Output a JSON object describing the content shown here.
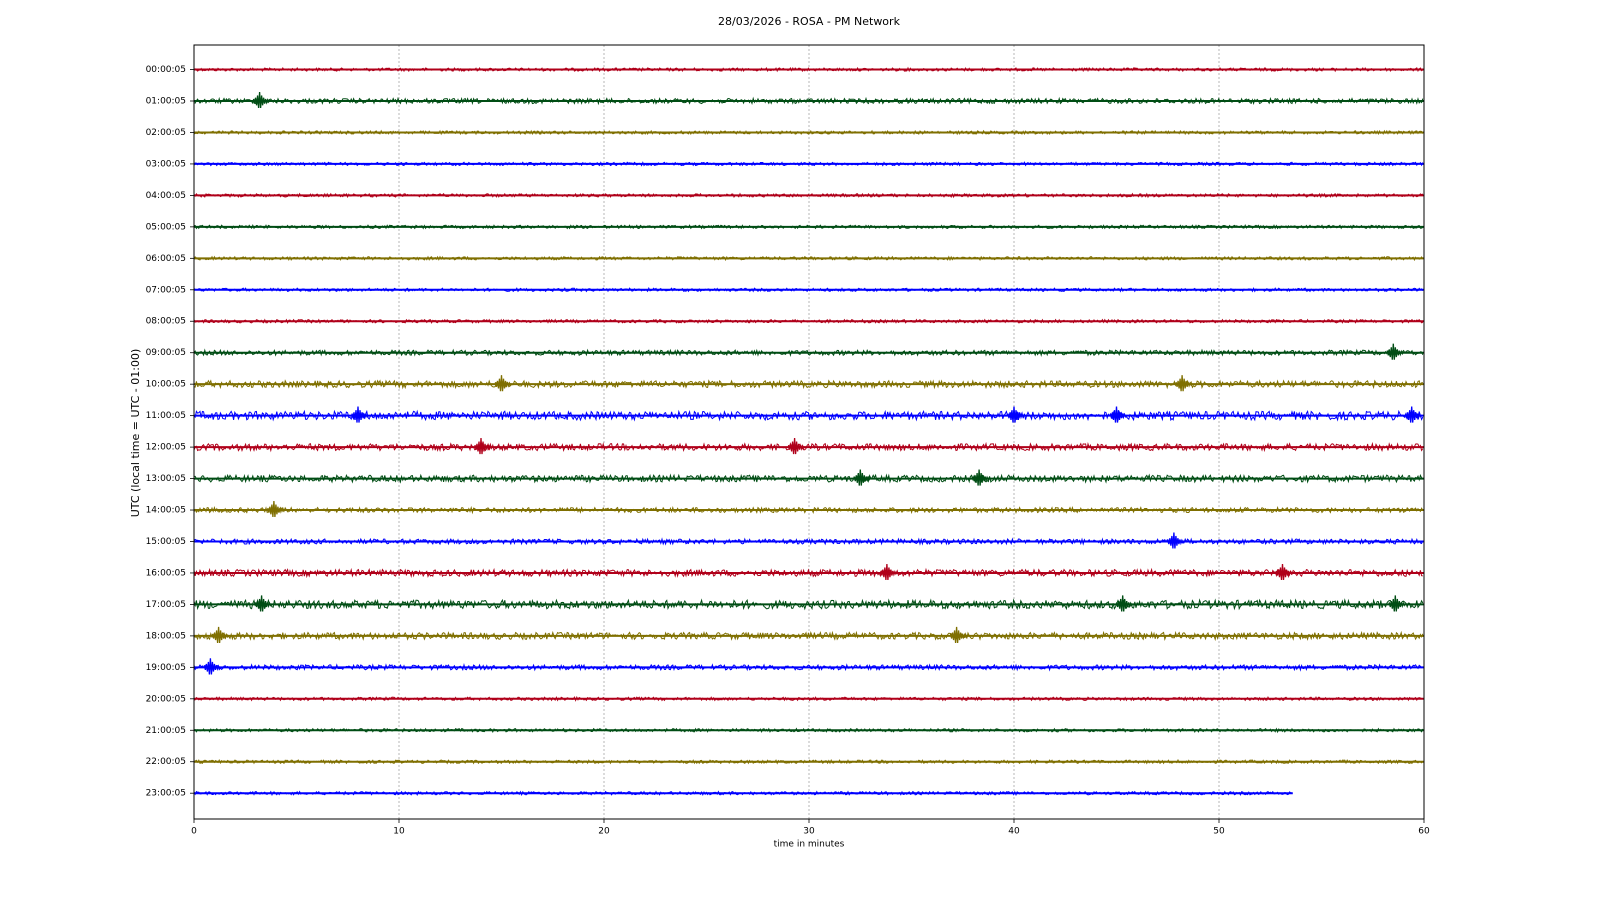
{
  "chart_data": {
    "type": "helicorder",
    "title": "28/03/2026 - ROSA - PM Network",
    "x_label": "time in minutes",
    "y_label": "UTC (local time = UTC - 01:00)",
    "xlim": [
      0,
      60
    ],
    "xticks": [
      0,
      10,
      20,
      30,
      40,
      50,
      60
    ],
    "grid": true,
    "series": [
      {
        "name": "00:00:05",
        "color": "#b0001a",
        "x": [
          0,
          60
        ],
        "events": []
      },
      {
        "name": "01:00:05",
        "color": "#004d14",
        "x": [
          0,
          60
        ],
        "events": [
          3.2
        ]
      },
      {
        "name": "02:00:05",
        "color": "#7f6f00",
        "x": [
          0,
          60
        ],
        "events": []
      },
      {
        "name": "03:00:05",
        "color": "#0000ff",
        "x": [
          0,
          60
        ],
        "events": []
      },
      {
        "name": "04:00:05",
        "color": "#b0001a",
        "x": [
          0,
          60
        ],
        "events": []
      },
      {
        "name": "05:00:05",
        "color": "#004d14",
        "x": [
          0,
          60
        ],
        "events": []
      },
      {
        "name": "06:00:05",
        "color": "#7f6f00",
        "x": [
          0,
          60
        ],
        "events": []
      },
      {
        "name": "07:00:05",
        "color": "#0000ff",
        "x": [
          0,
          60
        ],
        "events": []
      },
      {
        "name": "08:00:05",
        "color": "#b0001a",
        "x": [
          0,
          60
        ],
        "events": []
      },
      {
        "name": "09:00:05",
        "color": "#004d14",
        "x": [
          0,
          60
        ],
        "events": [
          58.5
        ]
      },
      {
        "name": "10:00:05",
        "color": "#7f6f00",
        "x": [
          0,
          60
        ],
        "events": [
          15,
          48.2
        ]
      },
      {
        "name": "11:00:05",
        "color": "#0000ff",
        "x": [
          0,
          60
        ],
        "events": [
          8,
          40,
          45,
          59.4
        ]
      },
      {
        "name": "12:00:05",
        "color": "#b0001a",
        "x": [
          0,
          60
        ],
        "events": [
          14,
          29.3
        ]
      },
      {
        "name": "13:00:05",
        "color": "#004d14",
        "x": [
          0,
          60
        ],
        "events": [
          32.5,
          38.3
        ]
      },
      {
        "name": "14:00:05",
        "color": "#7f6f00",
        "x": [
          0,
          60
        ],
        "events": [
          3.9
        ]
      },
      {
        "name": "15:00:05",
        "color": "#0000ff",
        "x": [
          0,
          60
        ],
        "events": [
          47.8
        ]
      },
      {
        "name": "16:00:05",
        "color": "#b0001a",
        "x": [
          0,
          60
        ],
        "events": [
          33.8,
          53.1
        ]
      },
      {
        "name": "17:00:05",
        "color": "#004d14",
        "x": [
          0,
          60
        ],
        "events": [
          3.3,
          45.3,
          58.6
        ]
      },
      {
        "name": "18:00:05",
        "color": "#7f6f00",
        "x": [
          0,
          60
        ],
        "events": [
          1.2,
          37.2
        ]
      },
      {
        "name": "19:00:05",
        "color": "#0000ff",
        "x": [
          0,
          60
        ],
        "events": [
          0.8
        ]
      },
      {
        "name": "20:00:05",
        "color": "#b0001a",
        "x": [
          0,
          60
        ],
        "events": []
      },
      {
        "name": "21:00:05",
        "color": "#004d14",
        "x": [
          0,
          60
        ],
        "events": []
      },
      {
        "name": "22:00:05",
        "color": "#7f6f00",
        "x": [
          0,
          60
        ],
        "events": []
      },
      {
        "name": "23:00:05",
        "color": "#0000ff",
        "x": [
          0,
          53.6
        ],
        "events": []
      }
    ]
  }
}
